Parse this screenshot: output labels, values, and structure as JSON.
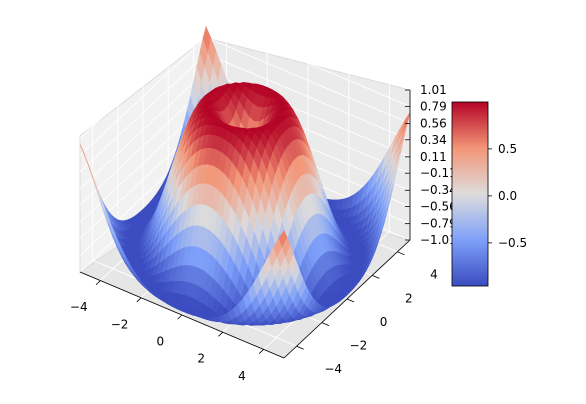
{
  "chart_data": {
    "type": "surface",
    "function": "sin(sqrt(x^2 + y^2))",
    "x_range": [
      -5,
      5
    ],
    "y_range": [
      -5,
      5
    ],
    "zlim": [
      -1.01,
      1.01
    ],
    "colormap": "coolwarm",
    "x_ticks": [
      "−4",
      "−2",
      "0",
      "2",
      "4"
    ],
    "y_ticks": [
      "−4",
      "−2",
      "0",
      "2",
      "4"
    ],
    "z_ticks": [
      "1.01",
      "0.79",
      "0.56",
      "0.34",
      "0.11",
      "−0.11",
      "−0.34",
      "−0.56",
      "−0.79",
      "−1.01"
    ],
    "colorbar": {
      "ticks": [
        "0.5",
        "0.0",
        "−0.5"
      ],
      "tick_values": [
        0.5,
        0.0,
        -0.5
      ],
      "range": [
        -0.959,
        0.999
      ]
    },
    "grid": true
  }
}
